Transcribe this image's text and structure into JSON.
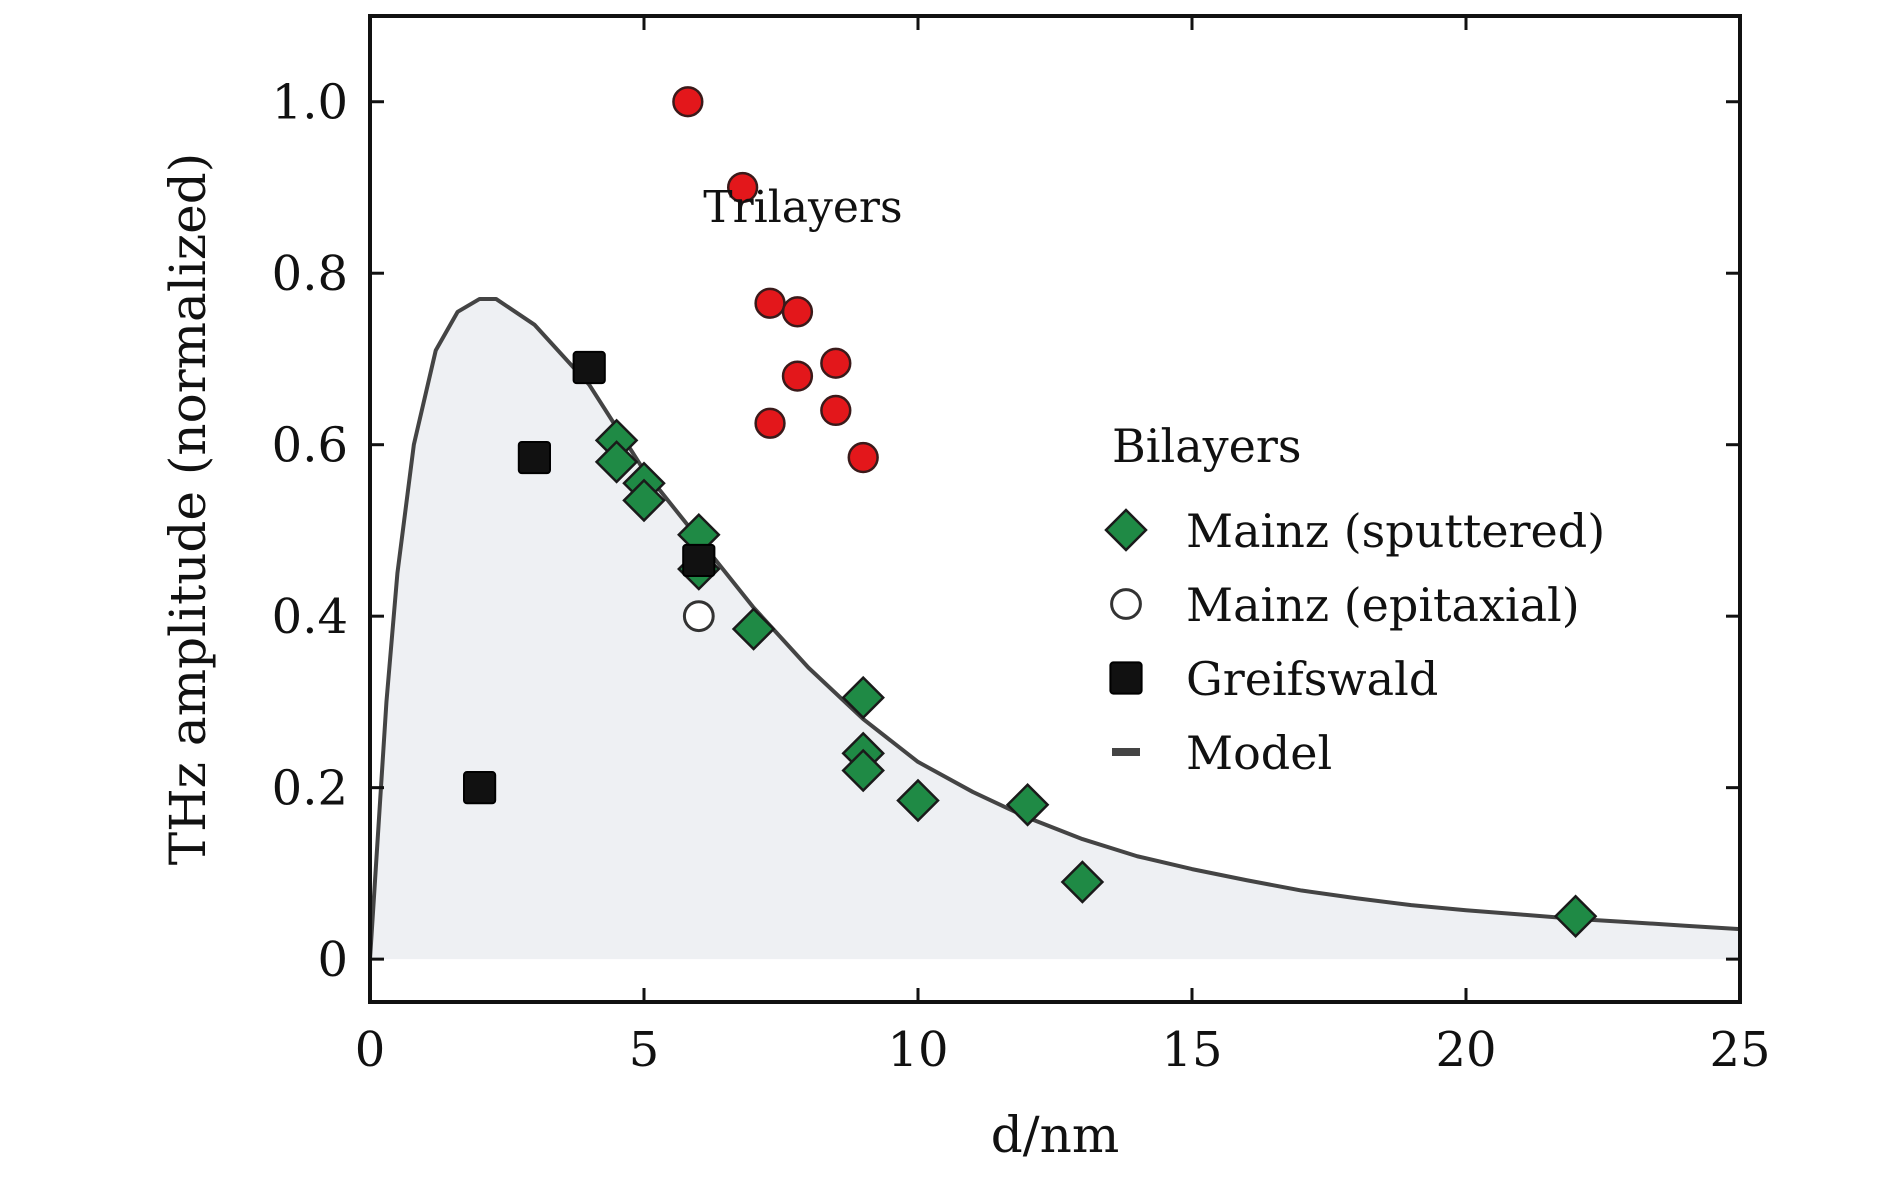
{
  "chart_data": {
    "type": "scatter",
    "xlabel": "d/nm",
    "ylabel": "THz amplitude (normalized)",
    "xlim": [
      0,
      25
    ],
    "ylim": [
      -0.05,
      1.1
    ],
    "x_ticks": [
      "0",
      "5",
      "10",
      "15",
      "20",
      "25"
    ],
    "y_ticks": [
      "0",
      "0.2",
      "0.4",
      "0.6",
      "0.8",
      "1.0"
    ],
    "x_tick_values": [
      0,
      5,
      10,
      15,
      20,
      25
    ],
    "y_tick_values": [
      0,
      0.2,
      0.4,
      0.6,
      0.8,
      1.0
    ],
    "grid": false,
    "legend_position": "right",
    "legend_title": "Bilayers",
    "annotations": [
      {
        "text": "Trilayers",
        "x": 7.9,
        "y": 0.86
      }
    ],
    "series": [
      {
        "name": "Mainz (sputtered)",
        "marker": "diamond",
        "color": "#1f8a45",
        "points": [
          {
            "x": 4.5,
            "y": 0.605
          },
          {
            "x": 4.5,
            "y": 0.58
          },
          {
            "x": 5.0,
            "y": 0.555
          },
          {
            "x": 5.0,
            "y": 0.535
          },
          {
            "x": 6.0,
            "y": 0.495
          },
          {
            "x": 6.0,
            "y": 0.455
          },
          {
            "x": 7.0,
            "y": 0.385
          },
          {
            "x": 9.0,
            "y": 0.305
          },
          {
            "x": 9.0,
            "y": 0.24
          },
          {
            "x": 9.0,
            "y": 0.22
          },
          {
            "x": 10.0,
            "y": 0.185
          },
          {
            "x": 12.0,
            "y": 0.18
          },
          {
            "x": 13.0,
            "y": 0.09
          },
          {
            "x": 22.0,
            "y": 0.05
          }
        ]
      },
      {
        "name": "Mainz (epitaxial)",
        "marker": "open-circle",
        "color": "#ffffff",
        "points": [
          {
            "x": 6.0,
            "y": 0.4
          }
        ]
      },
      {
        "name": "Greifswald",
        "marker": "square",
        "color": "#111111",
        "points": [
          {
            "x": 2.0,
            "y": 0.2
          },
          {
            "x": 3.0,
            "y": 0.585
          },
          {
            "x": 4.0,
            "y": 0.69
          },
          {
            "x": 6.0,
            "y": 0.465
          }
        ]
      },
      {
        "name": "Model",
        "marker": "line",
        "color": "#444444",
        "fill": "#eef0f3",
        "points": [
          {
            "x": 0.0,
            "y": 0.0
          },
          {
            "x": 0.1,
            "y": 0.1
          },
          {
            "x": 0.3,
            "y": 0.3
          },
          {
            "x": 0.5,
            "y": 0.45
          },
          {
            "x": 0.8,
            "y": 0.6
          },
          {
            "x": 1.2,
            "y": 0.71
          },
          {
            "x": 1.6,
            "y": 0.755
          },
          {
            "x": 2.0,
            "y": 0.77
          },
          {
            "x": 2.3,
            "y": 0.77
          },
          {
            "x": 3.0,
            "y": 0.74
          },
          {
            "x": 4.0,
            "y": 0.67
          },
          {
            "x": 5.0,
            "y": 0.57
          },
          {
            "x": 6.0,
            "y": 0.49
          },
          {
            "x": 7.0,
            "y": 0.41
          },
          {
            "x": 8.0,
            "y": 0.34
          },
          {
            "x": 9.0,
            "y": 0.28
          },
          {
            "x": 10.0,
            "y": 0.23
          },
          {
            "x": 11.0,
            "y": 0.195
          },
          {
            "x": 12.0,
            "y": 0.165
          },
          {
            "x": 13.0,
            "y": 0.14
          },
          {
            "x": 14.0,
            "y": 0.12
          },
          {
            "x": 15.0,
            "y": 0.105
          },
          {
            "x": 16.0,
            "y": 0.092
          },
          {
            "x": 17.0,
            "y": 0.08
          },
          {
            "x": 18.0,
            "y": 0.071
          },
          {
            "x": 19.0,
            "y": 0.063
          },
          {
            "x": 20.0,
            "y": 0.057
          },
          {
            "x": 21.0,
            "y": 0.052
          },
          {
            "x": 22.0,
            "y": 0.047
          },
          {
            "x": 23.0,
            "y": 0.043
          },
          {
            "x": 24.0,
            "y": 0.039
          },
          {
            "x": 25.0,
            "y": 0.035
          }
        ]
      },
      {
        "name": "",
        "group": "Trilayers",
        "marker": "circle",
        "color": "#e3171b",
        "points": [
          {
            "x": 5.8,
            "y": 1.0
          },
          {
            "x": 6.8,
            "y": 0.9
          },
          {
            "x": 7.3,
            "y": 0.765
          },
          {
            "x": 7.8,
            "y": 0.755
          },
          {
            "x": 7.8,
            "y": 0.68
          },
          {
            "x": 8.5,
            "y": 0.695
          },
          {
            "x": 8.5,
            "y": 0.64
          },
          {
            "x": 7.3,
            "y": 0.625
          },
          {
            "x": 9.0,
            "y": 0.585
          }
        ]
      }
    ]
  }
}
